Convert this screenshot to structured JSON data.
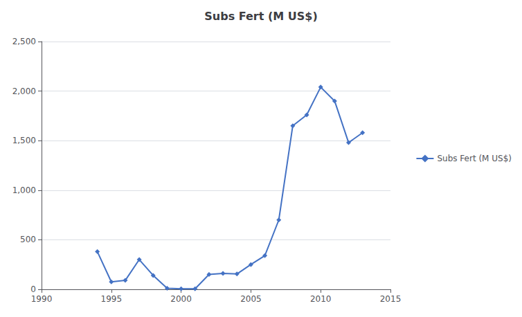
{
  "chart_data": {
    "type": "line",
    "title": "Subs Fert (M US$)",
    "x": [
      1994,
      1995,
      1996,
      1997,
      1998,
      1999,
      2000,
      2001,
      2002,
      2003,
      2004,
      2005,
      2006,
      2007,
      2008,
      2009,
      2010,
      2011,
      2012,
      2013
    ],
    "series": [
      {
        "name": "Subs Fert (M US$)",
        "color": "#4472C4",
        "marker": "diamond",
        "values": [
          380,
          75,
          90,
          300,
          140,
          10,
          5,
          5,
          150,
          160,
          155,
          250,
          340,
          700,
          1650,
          1760,
          2040,
          1900,
          1480,
          1580
        ]
      }
    ],
    "xlim": [
      1990,
      2015
    ],
    "xticks": [
      1990,
      1995,
      2000,
      2005,
      2010,
      2015
    ],
    "ylim": [
      0,
      2500
    ],
    "yticks": [
      0,
      500,
      {
        "value": 1000,
        "label": "1,000"
      },
      {
        "value": 1500,
        "label": "1,500"
      },
      {
        "value": 2000,
        "label": "2,000"
      },
      {
        "value": 2500,
        "label": "2,500"
      }
    ],
    "grid": true,
    "legend": "right"
  }
}
